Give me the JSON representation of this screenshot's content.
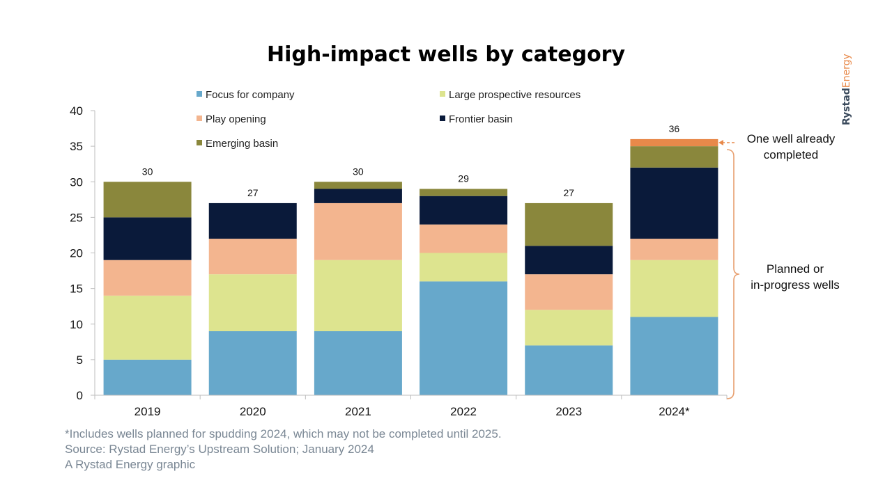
{
  "brand": {
    "part1": "Rystad",
    "part2": "Energy"
  },
  "footnotes": {
    "note": "*Includes wells planned for spudding 2024, which may not be completed until 2025.",
    "source": "Source: Rystad Energy’s Upstream Solution; January 2024",
    "credit": "A Rystad Energy graphic"
  },
  "annotations": {
    "completed_line1": "One well already",
    "completed_line2": "completed",
    "planned_line1": "Planned or",
    "planned_line2": "in-progress wells"
  },
  "colors": {
    "focus": "#67a8cb",
    "large": "#dde48f",
    "play": "#f3b58f",
    "frontier": "#0a1a3a",
    "emerging": "#8a873c",
    "completed": "#e8894a",
    "bracket": "#e8a070",
    "axis": "#bdbdbd"
  },
  "chart_data": {
    "type": "bar",
    "stacked": true,
    "title": "High-impact wells by category",
    "categories": [
      "2019",
      "2020",
      "2021",
      "2022",
      "2023",
      "2024*"
    ],
    "series": [
      {
        "name": "Focus for company",
        "color_key": "focus",
        "values": [
          5,
          9,
          9,
          16,
          7,
          11
        ]
      },
      {
        "name": "Large prospective resources",
        "color_key": "large",
        "values": [
          9,
          8,
          10,
          4,
          5,
          8
        ]
      },
      {
        "name": "Play opening",
        "color_key": "play",
        "values": [
          5,
          5,
          8,
          4,
          5,
          3
        ]
      },
      {
        "name": "Frontier basin",
        "color_key": "frontier",
        "values": [
          6,
          5,
          2,
          4,
          4,
          10
        ]
      },
      {
        "name": "Emerging basin",
        "color_key": "emerging",
        "values": [
          5,
          0,
          1,
          1,
          6,
          3
        ]
      }
    ],
    "completed": {
      "category": "2024*",
      "value": 1
    },
    "totals": [
      "30",
      "27",
      "30",
      "29",
      "27",
      "36"
    ],
    "ylim": [
      0,
      40
    ],
    "yticks": [
      0,
      5,
      10,
      15,
      20,
      25,
      30,
      35,
      40
    ],
    "legend": "top, two columns",
    "grid": false
  }
}
